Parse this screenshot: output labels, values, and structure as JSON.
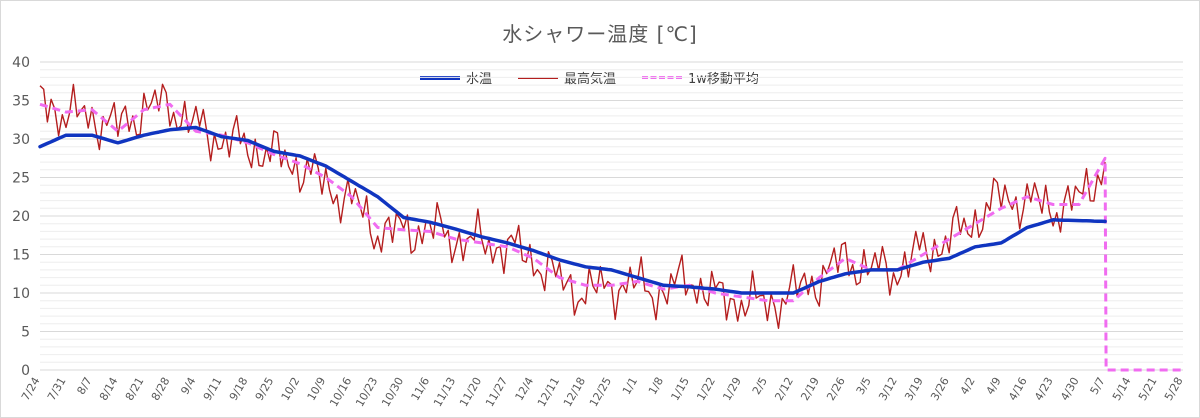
{
  "chart_data": {
    "type": "line",
    "title": "水シャワー温度 [℃]",
    "xlabel": "",
    "ylabel": "",
    "ylim": [
      0,
      40
    ],
    "yticks": [
      0,
      5,
      10,
      15,
      20,
      25,
      30,
      35,
      40
    ],
    "x_tick_labels": [
      "7/24",
      "7/31",
      "8/7",
      "8/14",
      "8/21",
      "8/28",
      "9/4",
      "9/11",
      "9/18",
      "9/25",
      "10/2",
      "10/9",
      "10/16",
      "10/23",
      "10/30",
      "11/6",
      "11/13",
      "11/20",
      "11/27",
      "12/4",
      "12/11",
      "12/18",
      "12/25",
      "1/1",
      "1/8",
      "1/15",
      "1/22",
      "1/29",
      "2/5",
      "2/12",
      "2/19",
      "2/26",
      "3/5",
      "3/12",
      "3/19",
      "3/26",
      "4/2",
      "4/9",
      "4/16",
      "4/23",
      "4/30",
      "5/7",
      "5/14",
      "5/21",
      "5/28"
    ],
    "grid": true,
    "legend_position": "top",
    "series": [
      {
        "name": "水温",
        "color": "#1035c0",
        "week_values": [
          29.0,
          30.5,
          30.5,
          29.5,
          30.5,
          31.2,
          31.5,
          30.3,
          29.8,
          28.4,
          27.8,
          26.5,
          24.5,
          22.5,
          19.8,
          19.2,
          18.3,
          17.3,
          16.5,
          15.5,
          14.3,
          13.4,
          13.0,
          12.0,
          11.0,
          10.8,
          10.5,
          10.0,
          10.0,
          10.0,
          11.5,
          12.5,
          13.0,
          13.0,
          14.0,
          14.5,
          16.0,
          16.5,
          18.5,
          19.5,
          19.4,
          19.3
        ]
      },
      {
        "name": "最高気温",
        "color": "#b41e1e",
        "week_values": [
          35.5,
          33.0,
          33.0,
          31.5,
          34.0,
          34.5,
          31.5,
          30.0,
          29.0,
          28.0,
          26.5,
          24.0,
          22.0,
          18.0,
          18.0,
          18.5,
          17.0,
          16.5,
          16.0,
          14.5,
          11.5,
          10.0,
          11.0,
          11.0,
          10.0,
          12.0,
          9.5,
          9.0,
          8.5,
          10.0,
          12.0,
          14.5,
          13.0,
          13.0,
          15.5,
          17.0,
          19.5,
          22.5,
          22.0,
          21.0,
          22.0,
          27.0
        ]
      },
      {
        "name": "1w移動平均",
        "color": "#f06cf0",
        "week_values": [
          34.5,
          33.5,
          33.8,
          31.0,
          33.8,
          34.5,
          31.0,
          30.5,
          29.5,
          28.0,
          26.8,
          25.0,
          22.5,
          18.5,
          18.2,
          18.0,
          17.0,
          16.5,
          16.0,
          14.5,
          12.0,
          11.0,
          11.0,
          11.5,
          10.5,
          11.0,
          10.0,
          9.5,
          9.0,
          9.0,
          12.0,
          14.5,
          13.0,
          13.0,
          15.0,
          17.0,
          19.0,
          21.0,
          22.5,
          21.5,
          21.5,
          27.5,
          0,
          0,
          0
        ]
      }
    ]
  }
}
